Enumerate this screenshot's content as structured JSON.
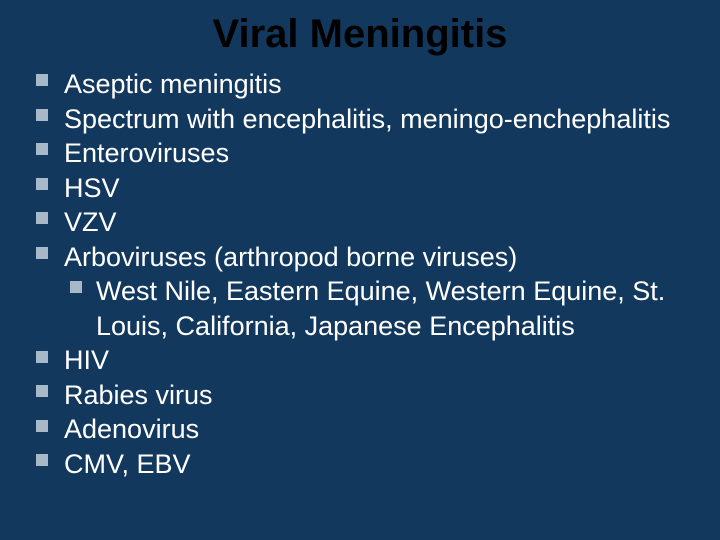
{
  "colors": {
    "background": "#13385e",
    "title": "#000000",
    "body_text": "#ffffff",
    "bullet": "#a7b8c9"
  },
  "typography": {
    "title_fontsize": 40,
    "body_fontsize": 27,
    "title_weight": "bold",
    "body_weight": "normal"
  },
  "title": "Viral Meningitis",
  "items": [
    {
      "text": "Aseptic meningitis"
    },
    {
      "text": "Spectrum with encephalitis, meningo-enchephalitis"
    },
    {
      "text": "Enteroviruses"
    },
    {
      "text": "HSV"
    },
    {
      "text": "VZV"
    },
    {
      "text": "Arboviruses (arthropod borne viruses)",
      "sub": [
        {
          "text": "West Nile, Eastern Equine, Western Equine, St. Louis, California, Japanese Encephalitis"
        }
      ]
    },
    {
      "text": "HIV"
    },
    {
      "text": "Rabies virus"
    },
    {
      "text": "Adenovirus"
    },
    {
      "text": "CMV, EBV"
    }
  ]
}
